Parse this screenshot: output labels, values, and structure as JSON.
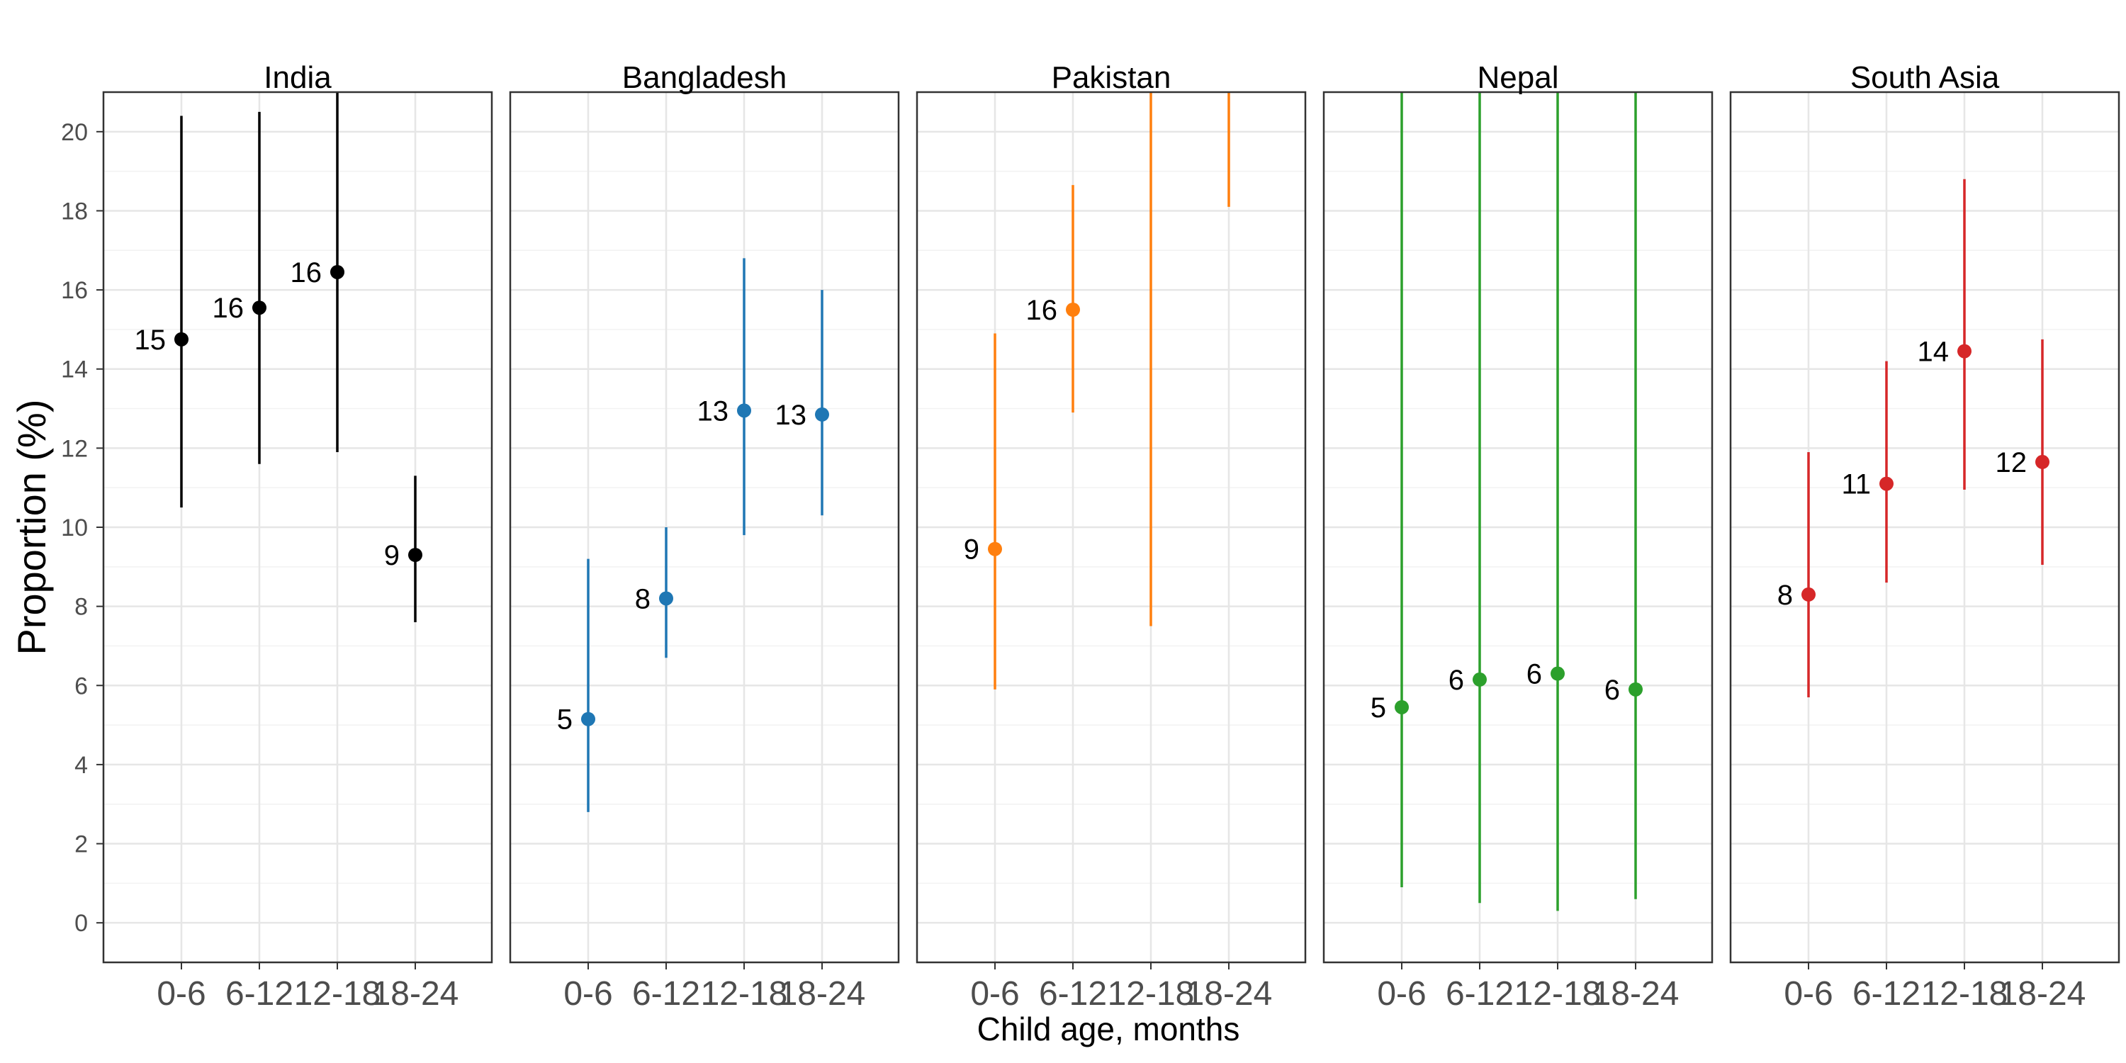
{
  "chart_data": {
    "type": "scatter",
    "subtype": "point-range faceted",
    "xlabel": "Child age, months",
    "ylabel": "Proportion (%)",
    "categories": [
      "0-6",
      "6-12",
      "12-18",
      "18-24"
    ],
    "ylim": [
      -1,
      21
    ],
    "yticks": [
      0,
      2,
      4,
      6,
      8,
      10,
      12,
      14,
      16,
      18,
      20
    ],
    "grid": true,
    "facets": [
      {
        "name": "India",
        "color": "#000000",
        "values": [
          14.75,
          15.55,
          16.45,
          9.3
        ],
        "labels": [
          "15",
          "16",
          "16",
          "9"
        ],
        "lower": [
          10.5,
          11.6,
          11.9,
          7.6
        ],
        "upper": [
          20.4,
          20.5,
          21.0,
          11.3
        ]
      },
      {
        "name": "Bangladesh",
        "color": "#1f77b4",
        "values": [
          5.15,
          8.2,
          12.95,
          12.85
        ],
        "labels": [
          "5",
          "8",
          "13",
          "13"
        ],
        "lower": [
          2.8,
          6.7,
          9.8,
          10.3
        ],
        "upper": [
          9.2,
          10.0,
          16.8,
          16.0
        ]
      },
      {
        "name": "Pakistan",
        "color": "#ff7f0e",
        "values": [
          9.45,
          15.5,
          null,
          null
        ],
        "labels": [
          "9",
          "16",
          "",
          ""
        ],
        "lower": [
          5.9,
          12.9,
          7.5,
          18.1
        ],
        "upper": [
          14.9,
          18.65,
          21.0,
          21.0
        ]
      },
      {
        "name": "Nepal",
        "color": "#2ca02c",
        "values": [
          5.45,
          6.15,
          6.3,
          5.9
        ],
        "labels": [
          "5",
          "6",
          "6",
          "6"
        ],
        "lower": [
          0.9,
          0.5,
          0.3,
          0.6
        ],
        "upper": [
          21.0,
          21.0,
          21.0,
          21.0
        ]
      },
      {
        "name": "South Asia",
        "color": "#d62728",
        "values": [
          8.3,
          11.1,
          14.45,
          11.65
        ],
        "labels": [
          "8",
          "11",
          "14",
          "12"
        ],
        "lower": [
          5.7,
          8.6,
          10.95,
          9.05
        ],
        "upper": [
          11.9,
          14.2,
          18.8,
          14.75
        ]
      }
    ]
  }
}
